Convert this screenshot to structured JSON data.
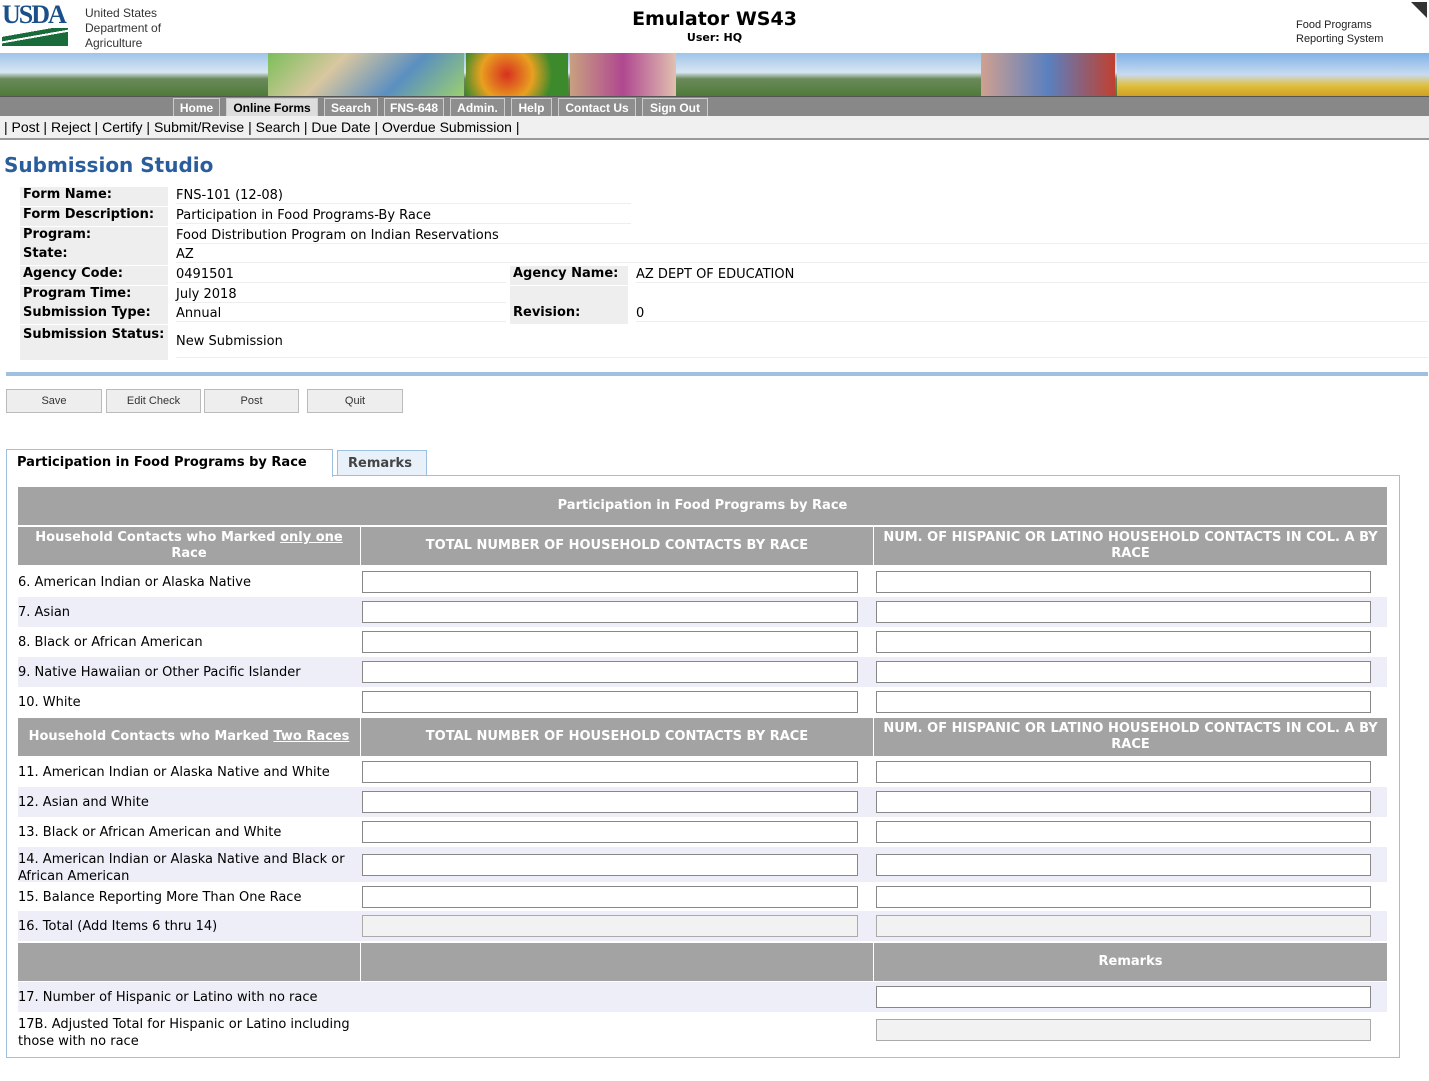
{
  "header": {
    "logo_text": "USDA",
    "dept_lines": [
      "United States",
      "Department of",
      "Agriculture"
    ],
    "app_title": "Emulator WS43",
    "user": "User: HQ",
    "system_lines": [
      "Food Programs",
      "Reporting System"
    ]
  },
  "nav": [
    {
      "label": "Home"
    },
    {
      "label": "Online Forms",
      "active": true
    },
    {
      "label": "Search"
    },
    {
      "label": "FNS-648"
    },
    {
      "label": "Admin."
    },
    {
      "label": "Help"
    },
    {
      "label": "Contact Us"
    },
    {
      "label": "Sign Out"
    }
  ],
  "subnav": [
    "Post",
    "Reject",
    "Certify",
    "Submit/Revise",
    "Search",
    "Due Date",
    "Overdue Submission"
  ],
  "page_title": "Submission Studio",
  "info": {
    "form_name_label": "Form Name:",
    "form_name": "FNS-101 (12-08)",
    "desc_label": "Form Description:",
    "desc": "Participation in Food Programs-By Race",
    "program_label": "Program:",
    "program": "Food Distribution Program on Indian Reservations",
    "state_label": "State:",
    "state": "AZ",
    "agency_code_label": "Agency Code:",
    "agency_code": "0491501",
    "agency_name_label": "Agency Name:",
    "agency_name": "AZ DEPT OF EDUCATION",
    "time_label": "Program Time:",
    "time": "July 2018",
    "type_label": "Submission Type:",
    "type": "Annual",
    "revision_label": "Revision:",
    "revision": "0",
    "status_label": "Submission Status:",
    "status": "New Submission"
  },
  "buttons": {
    "save": "Save",
    "edit_check": "Edit Check",
    "post": "Post",
    "quit": "Quit"
  },
  "tabs": {
    "active": "Participation in Food Programs by Race",
    "other": "Remarks"
  },
  "table": {
    "title": "Participation in Food Programs by Race",
    "sec1_head_pre": "Household Contacts who Marked ",
    "sec1_head_u": "only one",
    "sec1_head_post": " Race",
    "sec2_head_pre": "Household Contacts who Marked ",
    "sec2_head_u": "Two Races",
    "col_a": "TOTAL NUMBER OF HOUSEHOLD CONTACTS BY RACE",
    "col_b": "NUM. OF HISPANIC OR LATINO HOUSEHOLD CONTACTS IN COL. A BY RACE",
    "remarks_head": "Remarks",
    "rows1": [
      "6. American Indian or Alaska Native",
      "7. Asian",
      "8. Black or African American",
      "9. Native Hawaiian or Other Pacific Islander",
      "10. White"
    ],
    "rows2": [
      "11. American Indian or Alaska Native and White",
      "12. Asian and White",
      "13. Black or African American and White",
      "14. American Indian or Alaska Native and Black or African American",
      "15. Balance Reporting More Than One Race",
      "16. Total (Add Items 6 thru 14)"
    ],
    "row17": "17. Number of Hispanic or Latino with no race",
    "row17b": "17B. Adjusted Total for Hispanic or Latino including those with no race"
  }
}
